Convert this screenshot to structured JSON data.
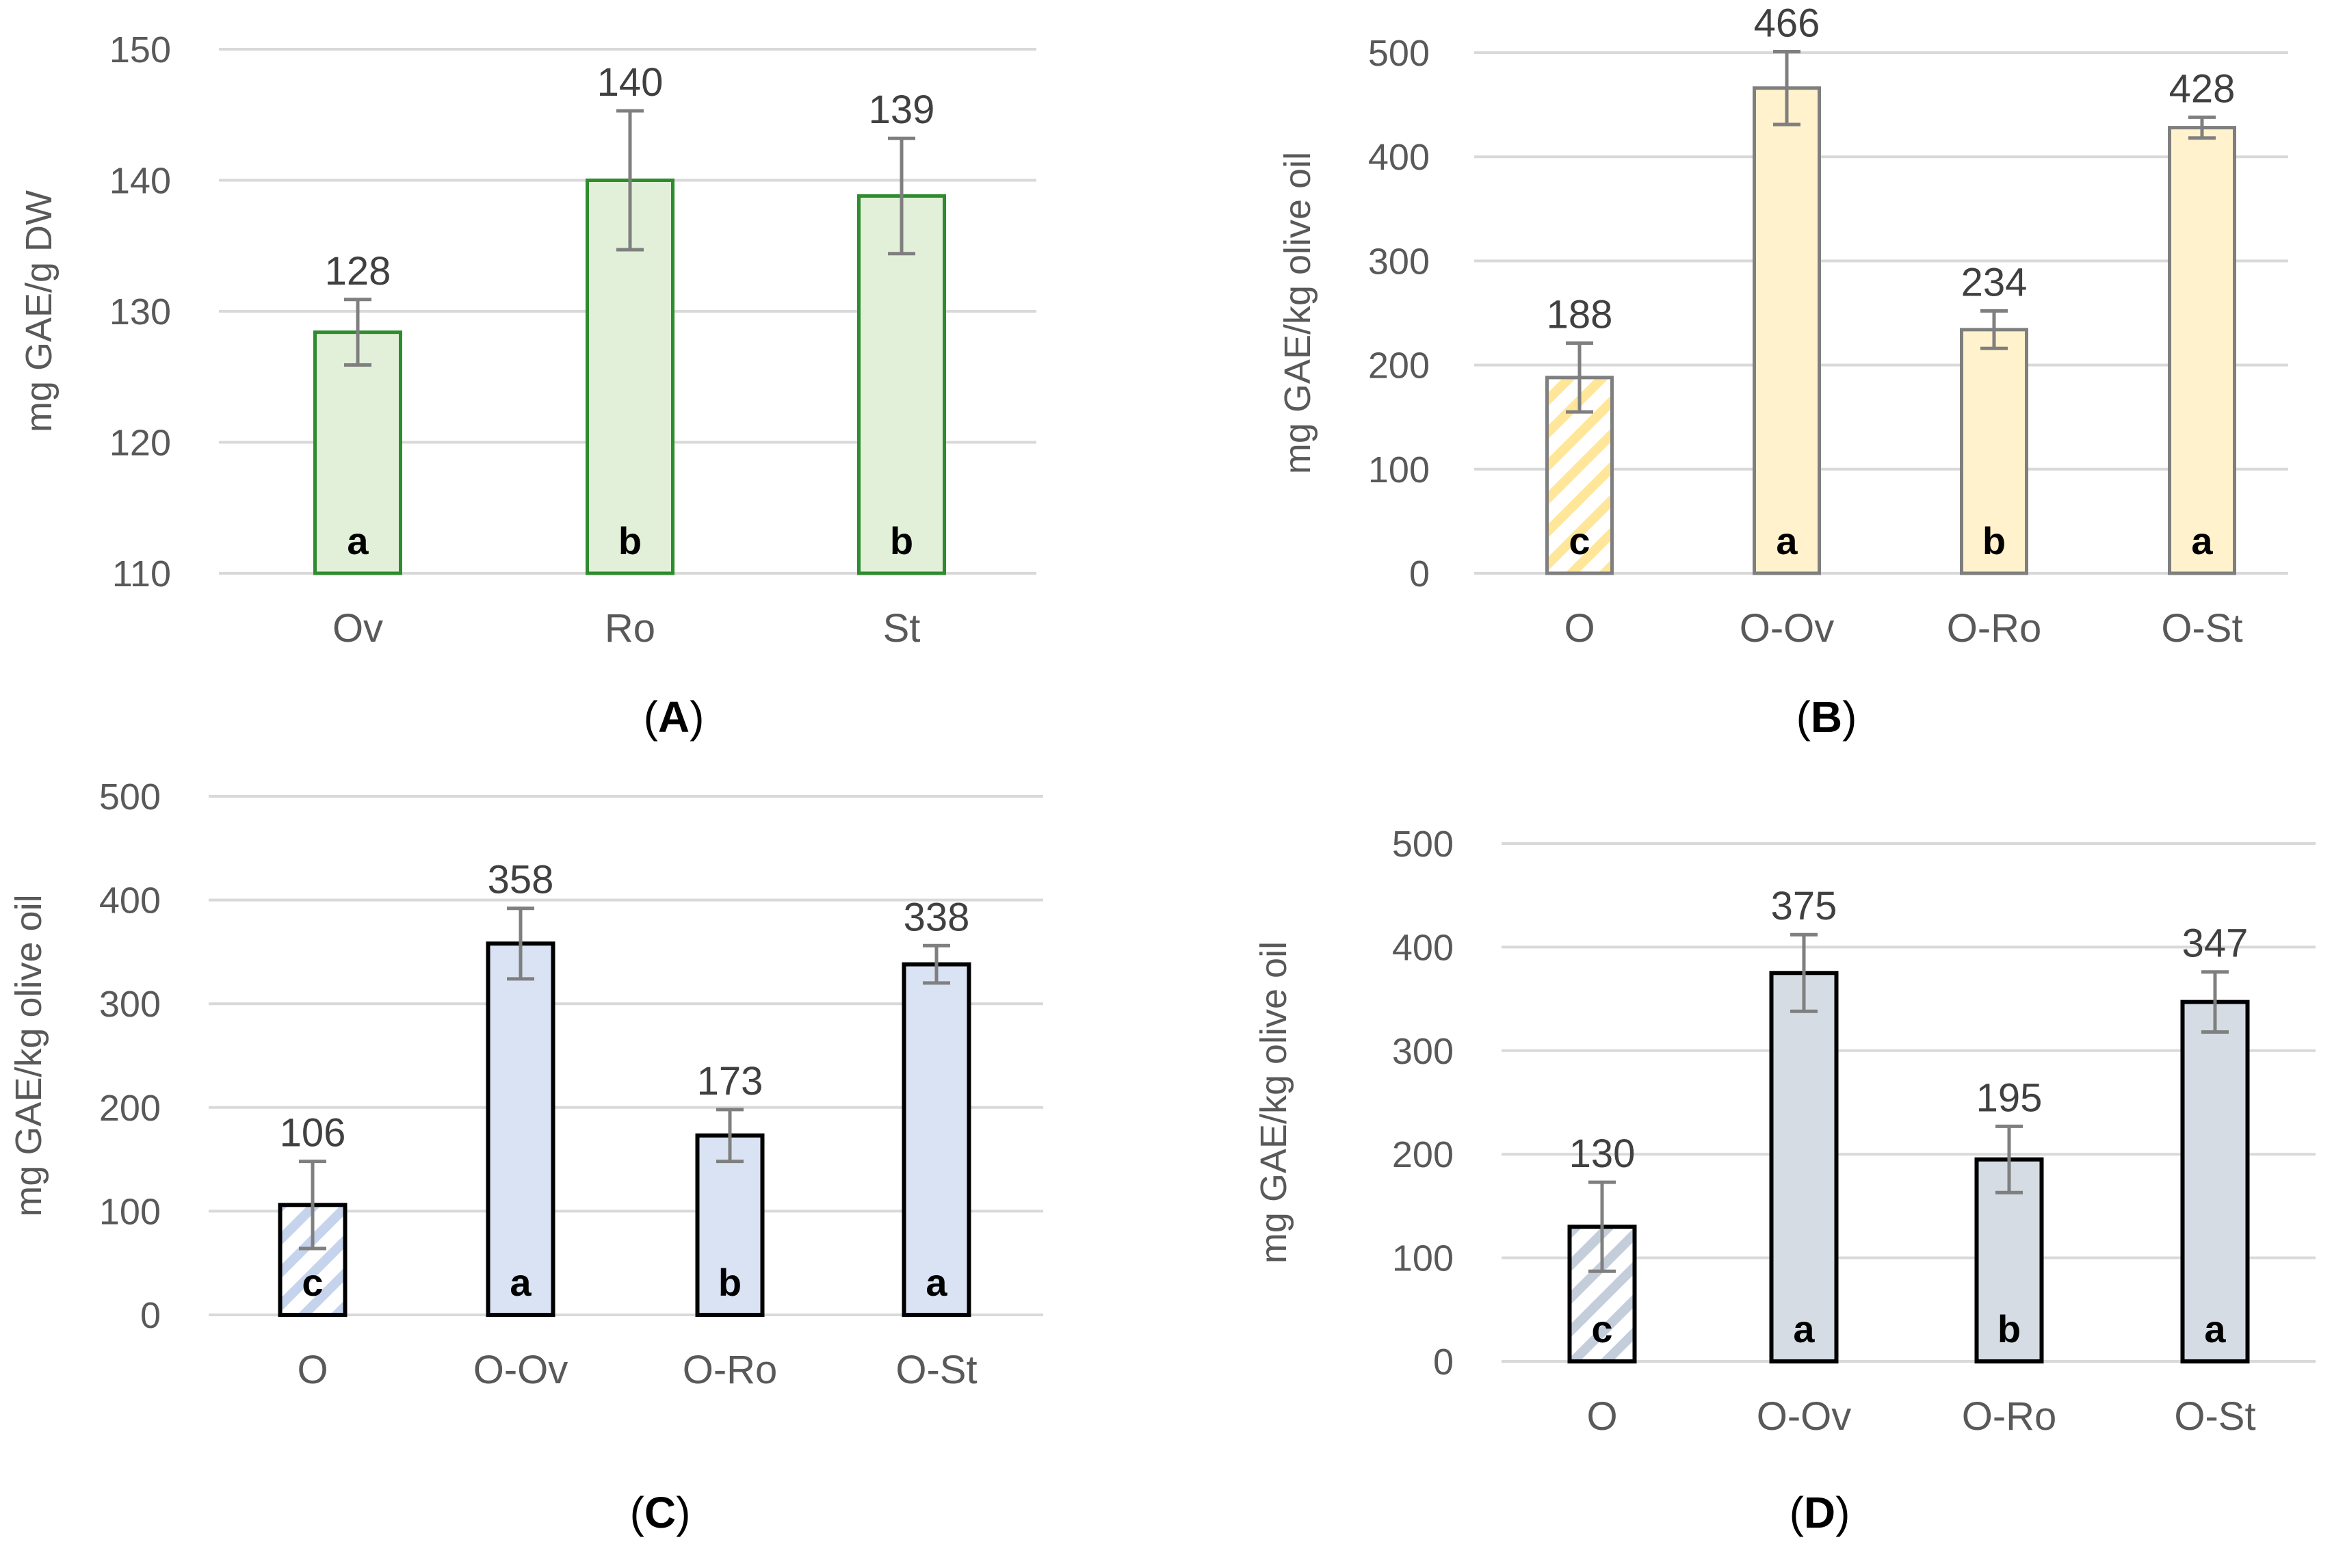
{
  "chart_data": [
    {
      "id": "A",
      "type": "bar",
      "panel_label": "A",
      "ylabel": "mg GAE/g DW",
      "xlabel": "",
      "ylim": [
        110,
        150
      ],
      "yticks": [
        110,
        120,
        130,
        140,
        150
      ],
      "grid": true,
      "categories": [
        "Ov",
        "Ro",
        "St"
      ],
      "values": [
        128.4,
        140.0,
        138.8
      ],
      "value_labels": [
        "128",
        "140",
        "139"
      ],
      "errors": [
        2.5,
        5.3,
        4.4
      ],
      "significance": [
        "a",
        "b",
        "b"
      ],
      "hatched": [
        false,
        false,
        false
      ],
      "fill_color": "#e2f0d9",
      "edge_color": "#2e8b2e",
      "hatch_color": "#e2f0d9"
    },
    {
      "id": "B",
      "type": "bar",
      "panel_label": "B",
      "ylabel": "mg GAE/kg olive oil",
      "xlabel": "",
      "ylim": [
        0,
        500
      ],
      "yticks": [
        0,
        100,
        200,
        300,
        400,
        500
      ],
      "grid": true,
      "categories": [
        "O",
        "O-Ov",
        "O-Ro",
        "O-St"
      ],
      "values": [
        188,
        466,
        234,
        428
      ],
      "value_labels": [
        "188",
        "466",
        "234",
        "428"
      ],
      "errors": [
        33,
        35,
        18,
        10
      ],
      "significance": [
        "c",
        "a",
        "b",
        "a"
      ],
      "hatched": [
        true,
        false,
        false,
        false
      ],
      "fill_color": "#fff2cc",
      "edge_color": "#7f7f7f",
      "hatch_color": "#ffe699"
    },
    {
      "id": "C",
      "type": "bar",
      "panel_label": "C",
      "ylabel": "mg GAE/kg olive oil",
      "xlabel": "",
      "ylim": [
        0,
        500
      ],
      "yticks": [
        0,
        100,
        200,
        300,
        400,
        500
      ],
      "grid": true,
      "categories": [
        "O",
        "O-Ov",
        "O-Ro",
        "O-St"
      ],
      "values": [
        106,
        358,
        173,
        338
      ],
      "value_labels": [
        "106",
        "358",
        "173",
        "338"
      ],
      "errors": [
        42,
        34,
        25,
        18
      ],
      "significance": [
        "c",
        "a",
        "b",
        "a"
      ],
      "hatched": [
        true,
        false,
        false,
        false
      ],
      "fill_color": "#dae3f3",
      "edge_color": "#000000",
      "hatch_color": "#c5d4ec"
    },
    {
      "id": "D",
      "type": "bar",
      "panel_label": "D",
      "ylabel": "mg GAE/kg olive oil",
      "xlabel": "",
      "ylim": [
        0,
        500
      ],
      "yticks": [
        0,
        100,
        200,
        300,
        400,
        500
      ],
      "grid": true,
      "categories": [
        "O",
        "O-Ov",
        "O-Ro",
        "O-St"
      ],
      "values": [
        130,
        375,
        195,
        347
      ],
      "value_labels": [
        "130",
        "375",
        "195",
        "347"
      ],
      "errors": [
        43,
        37,
        32,
        29
      ],
      "significance": [
        "c",
        "a",
        "b",
        "a"
      ],
      "hatched": [
        true,
        false,
        false,
        false
      ],
      "fill_color": "#d6dce4",
      "edge_color": "#000000",
      "hatch_color": "#c4cedb"
    }
  ]
}
